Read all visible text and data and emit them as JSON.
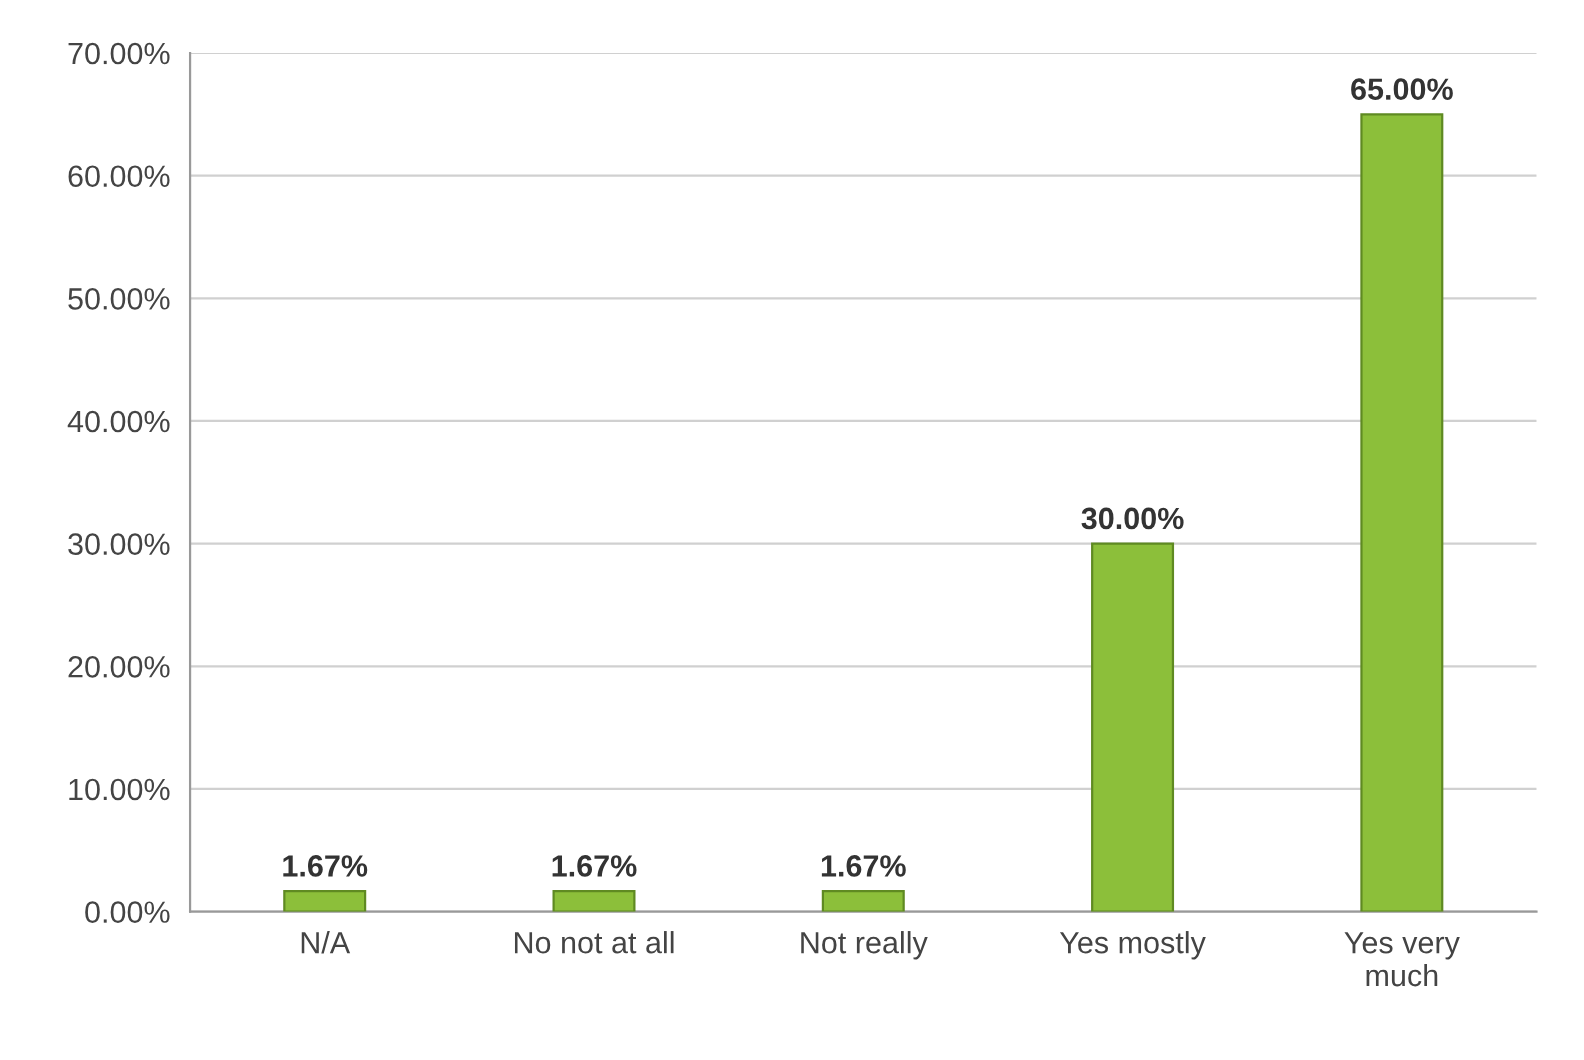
{
  "chart_data": {
    "type": "bar",
    "categories": [
      "N/A",
      "No not at all",
      "Not really",
      "Yes mostly",
      "Yes very\nmuch"
    ],
    "values": [
      1.67,
      1.67,
      1.67,
      30,
      65
    ],
    "value_labels": [
      "1.67%",
      "1.67%",
      "1.67%",
      "30.00%",
      "65.00%"
    ],
    "color": "#8cbf3a",
    "ylim": [
      0,
      70
    ],
    "yticks": [
      {
        "value": 0,
        "label": "0.00%"
      },
      {
        "value": 10,
        "label": "10.00%"
      },
      {
        "value": 20,
        "label": "20.00%"
      },
      {
        "value": 30,
        "label": "30.00%"
      },
      {
        "value": 40,
        "label": "40.00%"
      },
      {
        "value": 50,
        "label": "50.00%"
      },
      {
        "value": 60,
        "label": "60.00%"
      },
      {
        "value": 70,
        "label": "70.00%"
      }
    ],
    "grid": "y"
  }
}
